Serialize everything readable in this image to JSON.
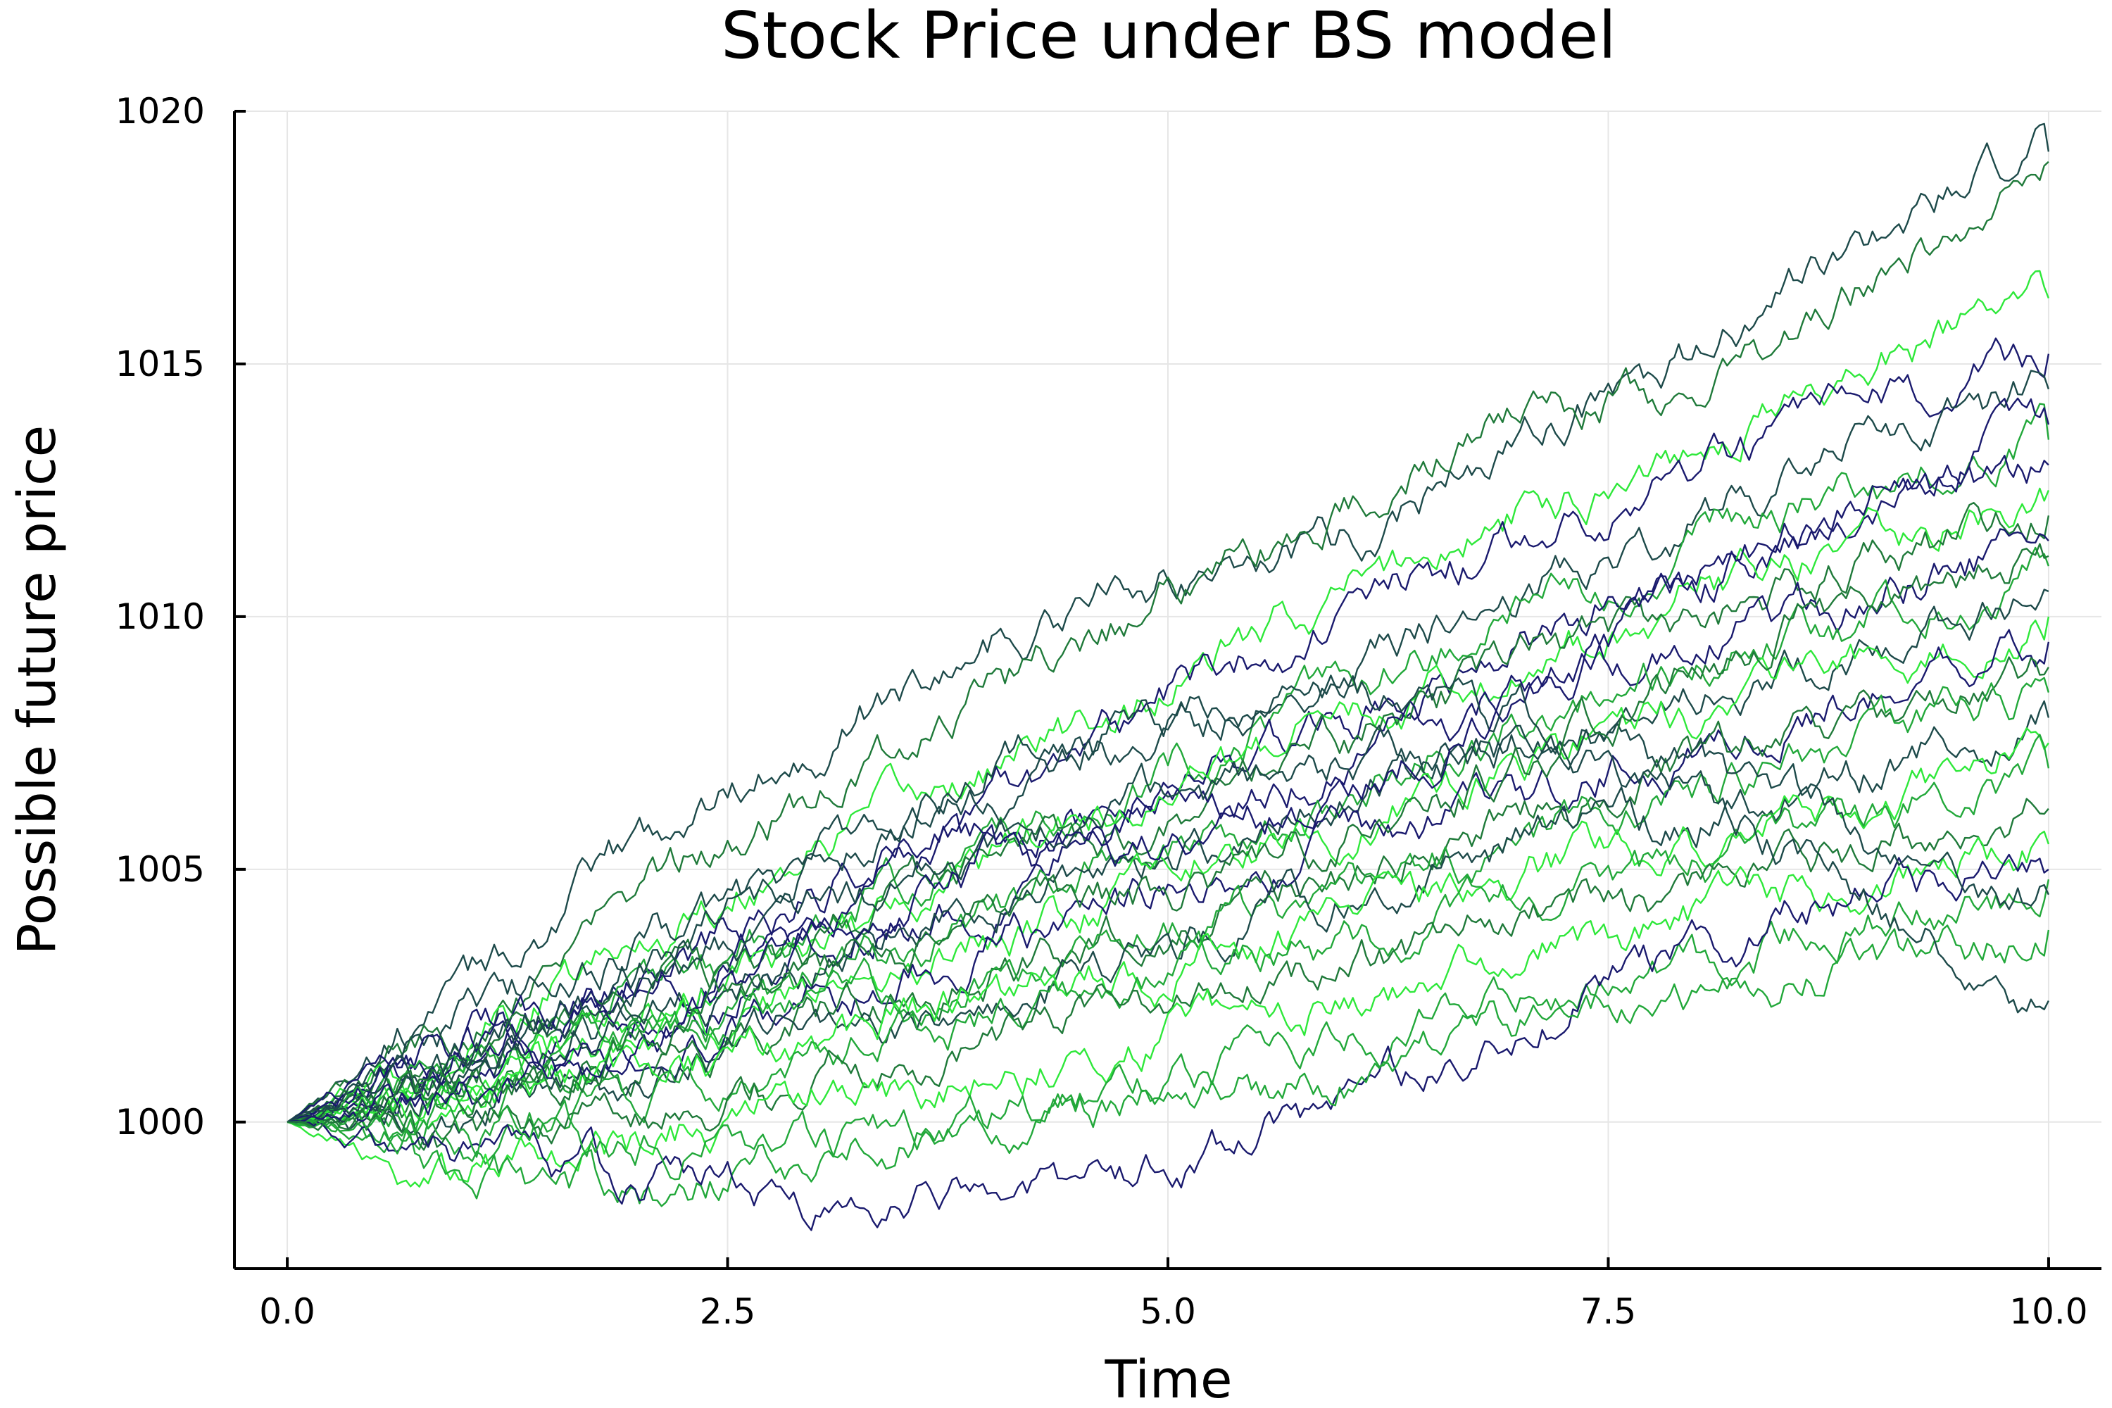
{
  "chart_data": {
    "type": "line",
    "title": "Stock Price under BS model",
    "xlabel": "Time",
    "ylabel": "Possible future price",
    "xlim": [
      -0.3,
      10.3
    ],
    "ylim": [
      997.1,
      1020.0
    ],
    "xticks": [
      0.0,
      2.5,
      5.0,
      7.5,
      10.0
    ],
    "xtick_labels": [
      "0.0",
      "2.5",
      "5.0",
      "7.5",
      "10.0"
    ],
    "yticks": [
      1000,
      1005,
      1010,
      1015,
      1020
    ],
    "ytick_labels": [
      "1000",
      "1005",
      "1010",
      "1015",
      "1020"
    ],
    "grid": true,
    "legend": "none",
    "colors": [
      "#1a1a6e",
      "#1d4a4a",
      "#1f7a3a",
      "#22a83a",
      "#2ee83a"
    ],
    "series": [
      {
        "x": [
          0,
          1,
          2,
          3,
          4,
          5,
          6,
          7,
          8,
          9,
          10
        ],
        "y": [
          1000,
          1002.5,
          1005.5,
          1007.5,
          1009.5,
          1010.8,
          1011.5,
          1013.5,
          1015,
          1017.5,
          1019.2
        ],
        "color": "#1d4a4a"
      },
      {
        "x": [
          0,
          1,
          2,
          3,
          4,
          5,
          6,
          7,
          8,
          9,
          10
        ],
        "y": [
          1000,
          1002,
          1004.5,
          1006.5,
          1008.5,
          1010.5,
          1012,
          1014,
          1014.5,
          1016.5,
          1019
        ],
        "color": "#1f7a3a"
      },
      {
        "x": [
          0,
          1,
          2,
          3,
          4,
          5,
          6,
          7,
          8,
          9,
          10
        ],
        "y": [
          1000,
          1001.5,
          1003.5,
          1005.5,
          1007,
          1008.5,
          1010.5,
          1012,
          1013.5,
          1015,
          1016.3
        ],
        "color": "#2ee83a"
      },
      {
        "x": [
          0,
          1,
          2,
          3,
          4,
          5,
          6,
          7,
          8,
          9,
          10
        ],
        "y": [
          1000,
          1001.5,
          1003,
          1004.5,
          1006.5,
          1008.5,
          1010,
          1011.5,
          1013,
          1014,
          1015.2
        ],
        "color": "#1a1a6e"
      },
      {
        "x": [
          0,
          1,
          2,
          3,
          4,
          5,
          6,
          7,
          8,
          9,
          10
        ],
        "y": [
          1000,
          1002,
          1003.5,
          1005,
          1006.5,
          1007.5,
          1009,
          1010.5,
          1012,
          1013.5,
          1014.5
        ],
        "color": "#1d4a4a"
      },
      {
        "x": [
          0,
          1,
          2,
          3,
          4,
          5,
          6,
          7,
          8,
          9,
          10
        ],
        "y": [
          1000,
          1001,
          1002.5,
          1004,
          1005.5,
          1007,
          1008.5,
          1010,
          1011.5,
          1012.5,
          1013.5
        ],
        "color": "#22a83a"
      },
      {
        "x": [
          0,
          1,
          2,
          3,
          4,
          5,
          6,
          7,
          8,
          9,
          10
        ],
        "y": [
          1000,
          1001.5,
          1002.5,
          1004,
          1005.5,
          1006.5,
          1008,
          1009.5,
          1011,
          1012,
          1013
        ],
        "color": "#1a1a6e"
      },
      {
        "x": [
          0,
          1,
          2,
          3,
          4,
          5,
          6,
          7,
          8,
          9,
          10
        ],
        "y": [
          1000,
          1000.5,
          1002,
          1003.5,
          1005,
          1006.5,
          1008,
          1009,
          1010.5,
          1011.5,
          1012.5
        ],
        "color": "#2ee83a"
      },
      {
        "x": [
          0,
          1,
          2,
          3,
          4,
          5,
          6,
          7,
          8,
          9,
          10
        ],
        "y": [
          1000,
          1001,
          1002.5,
          1003.5,
          1005,
          1006,
          1007.5,
          1009,
          1010,
          1011,
          1012
        ],
        "color": "#1f7a3a"
      },
      {
        "x": [
          0,
          1,
          2,
          3,
          4,
          5,
          6,
          7,
          8,
          9,
          10
        ],
        "y": [
          1000,
          1001.5,
          1002,
          1003.5,
          1004.5,
          1006,
          1007,
          1008.5,
          1009.5,
          1010.5,
          1011.5
        ],
        "color": "#1a1a6e"
      },
      {
        "x": [
          0,
          1,
          2,
          3,
          4,
          5,
          6,
          7,
          8,
          9,
          10
        ],
        "y": [
          1000,
          1000.5,
          1001.5,
          1003,
          1004,
          1005.5,
          1006.5,
          1008,
          1009,
          1010,
          1011
        ],
        "color": "#22a83a"
      },
      {
        "x": [
          0,
          1,
          2,
          3,
          4,
          5,
          6,
          7,
          8,
          9,
          10
        ],
        "y": [
          1000,
          1001,
          1002,
          1003,
          1004.5,
          1005,
          1006.5,
          1007.5,
          1008.5,
          1009.5,
          1010.5
        ],
        "color": "#1d4a4a"
      },
      {
        "x": [
          0,
          1,
          2,
          3,
          4,
          5,
          6,
          7,
          8,
          9,
          10
        ],
        "y": [
          1000,
          1000.5,
          1001.5,
          1002.5,
          1003.5,
          1005,
          1006,
          1007,
          1008,
          1009,
          1010
        ],
        "color": "#2ee83a"
      },
      {
        "x": [
          0,
          1,
          2,
          3,
          4,
          5,
          6,
          7,
          8,
          9,
          10
        ],
        "y": [
          1000,
          1001,
          1001.5,
          1002.5,
          1003.5,
          1004.5,
          1005.5,
          1006.5,
          1007.5,
          1008.5,
          1009.5
        ],
        "color": "#1a1a6e"
      },
      {
        "x": [
          0,
          1,
          2,
          3,
          4,
          5,
          6,
          7,
          8,
          9,
          10
        ],
        "y": [
          1000,
          1000.5,
          1001,
          1002,
          1003,
          1004,
          1005,
          1006,
          1007,
          1008,
          1009
        ],
        "color": "#1f7a3a"
      },
      {
        "x": [
          0,
          1,
          2,
          3,
          4,
          5,
          6,
          7,
          8,
          9,
          10
        ],
        "y": [
          1000,
          1000.5,
          1001.5,
          1002.5,
          1003,
          1004,
          1004.5,
          1005.5,
          1006.5,
          1007.5,
          1008.5
        ],
        "color": "#22a83a"
      },
      {
        "x": [
          0,
          1,
          2,
          3,
          4,
          5,
          6,
          7,
          8,
          9,
          10
        ],
        "y": [
          1000,
          1000,
          1001,
          1002,
          1002.5,
          1003.5,
          1004.5,
          1005.5,
          1006,
          1007,
          1008
        ],
        "color": "#1d4a4a"
      },
      {
        "x": [
          0,
          1,
          2,
          3,
          4,
          5,
          6,
          7,
          8,
          9,
          10
        ],
        "y": [
          1000,
          1000.5,
          1001,
          1001.5,
          1002.5,
          1003,
          1004,
          1005,
          1005.5,
          1006.5,
          1007.5
        ],
        "color": "#2ee83a"
      },
      {
        "x": [
          0,
          1,
          2,
          3,
          4,
          5,
          6,
          7,
          8,
          9,
          10
        ],
        "y": [
          1000,
          999.5,
          1000.5,
          1001.5,
          1002,
          1003,
          1003.5,
          1004.5,
          1005,
          1006,
          1007
        ],
        "color": "#22a83a"
      },
      {
        "x": [
          0,
          1,
          2,
          3,
          4,
          5,
          6,
          7,
          8,
          9,
          10
        ],
        "y": [
          1000,
          999.5,
          1000,
          1001,
          1001.5,
          1002.5,
          1003,
          1004,
          1004.5,
          1005.5,
          1006.2
        ],
        "color": "#1f7a3a"
      },
      {
        "x": [
          0,
          1,
          2,
          3,
          4,
          5,
          6,
          7,
          8,
          9,
          10
        ],
        "y": [
          1000,
          999,
          999.5,
          1000.5,
          1001,
          1001.8,
          1002.5,
          1003.3,
          1004,
          1004.8,
          1005.5
        ],
        "color": "#2ee83a"
      },
      {
        "x": [
          0,
          1,
          2,
          3,
          4,
          5,
          6,
          7,
          8,
          9,
          10
        ],
        "y": [
          1000,
          999,
          998.5,
          999.5,
          1000,
          1001,
          1001.5,
          1002.5,
          1003,
          1004,
          1004.8
        ],
        "color": "#22a83a"
      },
      {
        "x": [
          0,
          1,
          2,
          3,
          4,
          5,
          6,
          7,
          8,
          9,
          10
        ],
        "y": [
          1000,
          999.5,
          999,
          998.5,
          998.5,
          999,
          1000.5,
          1002,
          1003.5,
          1004.5,
          1005
        ],
        "color": "#1a1a6e"
      },
      {
        "x": [
          0,
          1,
          2,
          3,
          4,
          5,
          6,
          7,
          8,
          9,
          10
        ],
        "y": [
          1000,
          1000,
          999.5,
          999.5,
          1000,
          1000.5,
          1001,
          1002,
          1002.5,
          1003,
          1003.8
        ],
        "color": "#22a83a"
      },
      {
        "x": [
          0,
          1,
          2,
          3,
          4,
          5,
          6,
          7,
          8,
          9,
          10
        ],
        "y": [
          1000,
          1001,
          1002.5,
          1004,
          1005.5,
          1006.5,
          1007,
          1007.5,
          1006.5,
          1004.5,
          1002.4
        ],
        "color": "#1d4a4a"
      },
      {
        "x": [
          0,
          1,
          2,
          3,
          4,
          5,
          6,
          7,
          8,
          9,
          10
        ],
        "y": [
          1000,
          1001,
          1003,
          1005,
          1007,
          1008,
          1008.5,
          1008,
          1007,
          1005.5,
          1004.5
        ],
        "color": "#1d4a4a"
      },
      {
        "x": [
          0,
          1,
          2,
          3,
          4,
          5,
          6,
          7,
          8,
          9,
          10
        ],
        "y": [
          1000,
          1000.5,
          1001.5,
          1003.5,
          1005,
          1005.5,
          1006.5,
          1008.5,
          1010.5,
          1012.5,
          1013.8
        ],
        "color": "#1a1a6e"
      },
      {
        "x": [
          0,
          1,
          2,
          3,
          4,
          5,
          6,
          7,
          8,
          9,
          10
        ],
        "y": [
          1000,
          1000.5,
          1001.5,
          1003,
          1004,
          1004.5,
          1005.5,
          1007,
          1009,
          1010.5,
          1011.2
        ],
        "color": "#1f7a3a"
      }
    ]
  }
}
